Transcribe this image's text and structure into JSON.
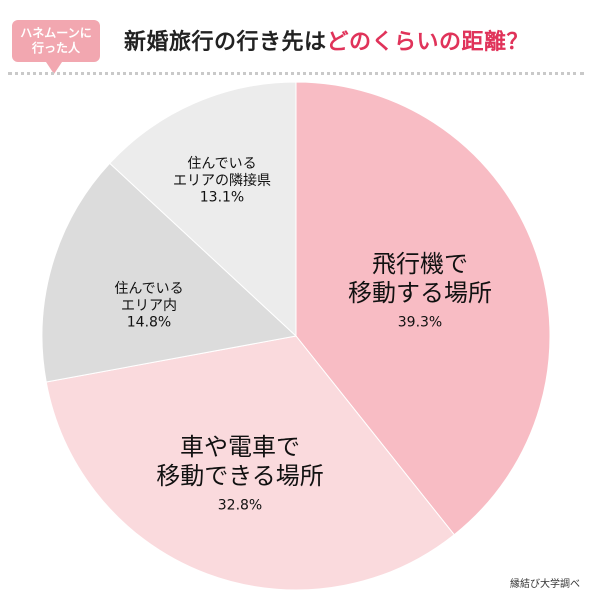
{
  "badge": {
    "line1": "ハネムーンに",
    "line2": "行った人"
  },
  "title": {
    "main": "新婚旅行の行き先は",
    "accent": "どのくらいの距離？"
  },
  "source": "縁結び大学調べ",
  "colors": {
    "accent": "#e0335a",
    "badge": "#f2a7b0"
  },
  "chart_data": {
    "type": "pie",
    "slices": [
      {
        "label_lines": [
          "飛行機で",
          "移動する場所"
        ],
        "value": 39.3,
        "value_label": "39.3%",
        "color": "#f8bcc4"
      },
      {
        "label_lines": [
          "車や電車で",
          "移動できる場所"
        ],
        "value": 32.8,
        "value_label": "32.8%",
        "color": "#fadadd"
      },
      {
        "label_lines": [
          "住んでいる",
          "エリア内"
        ],
        "value": 14.8,
        "value_label": "14.8%",
        "color": "#dcdcdc"
      },
      {
        "label_lines": [
          "住んでいる",
          "エリアの隣接県"
        ],
        "value": 13.1,
        "value_label": "13.1%",
        "color": "#ececec"
      }
    ]
  }
}
